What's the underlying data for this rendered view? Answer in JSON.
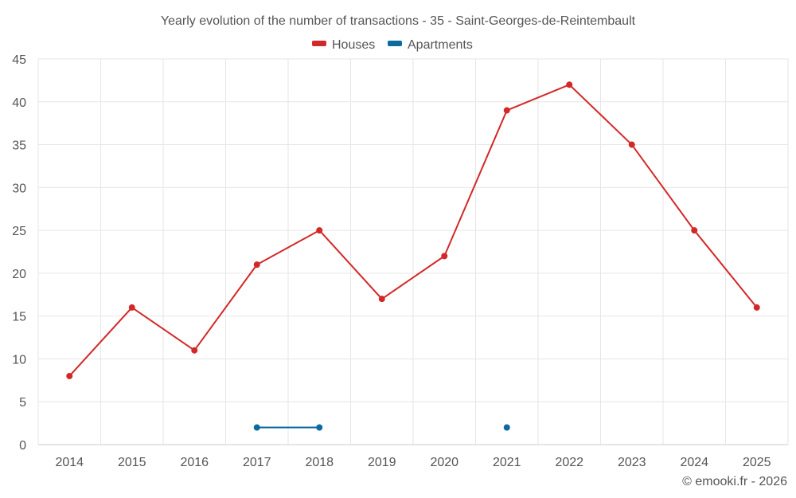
{
  "chart_data": {
    "type": "line",
    "title": "Yearly evolution of the number of transactions - 35 - Saint-Georges-de-Reintembault",
    "categories": [
      "2014",
      "2015",
      "2016",
      "2017",
      "2018",
      "2019",
      "2020",
      "2021",
      "2022",
      "2023",
      "2024",
      "2025"
    ],
    "series": [
      {
        "name": "Houses",
        "color": "#d32828",
        "values": [
          8,
          16,
          11,
          21,
          25,
          17,
          22,
          39,
          42,
          35,
          25,
          16
        ]
      },
      {
        "name": "Apartments",
        "color": "#0b6aa2",
        "values": [
          null,
          null,
          null,
          2,
          2,
          null,
          null,
          2,
          null,
          null,
          null,
          null
        ]
      }
    ],
    "ylim": [
      0,
      45
    ],
    "yticks": [
      0,
      5,
      10,
      15,
      20,
      25,
      30,
      35,
      40,
      45
    ],
    "grid": true,
    "legend": "top-center",
    "xlabel": "",
    "ylabel": ""
  },
  "credit": "© emooki.fr - 2026"
}
